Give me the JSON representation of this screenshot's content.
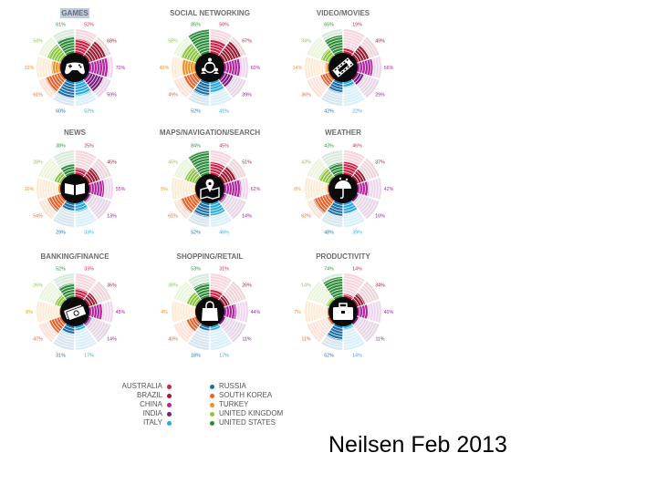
{
  "countries": [
    {
      "name": "AUSTRALIA",
      "color": "#d21f43"
    },
    {
      "name": "BRAZIL",
      "color": "#9c1a32"
    },
    {
      "name": "CHINA",
      "color": "#b3239d"
    },
    {
      "name": "INDIA",
      "color": "#7a1c7c"
    },
    {
      "name": "ITALY",
      "color": "#2aa9e0"
    },
    {
      "name": "RUSSIA",
      "color": "#1e6fa6"
    },
    {
      "name": "SOUTH KOREA",
      "color": "#e8642c"
    },
    {
      "name": "TURKEY",
      "color": "#f2901e"
    },
    {
      "name": "UNITED KINGDOM",
      "color": "#8cc63f"
    },
    {
      "name": "UNITED STATES",
      "color": "#2e8b3a"
    }
  ],
  "chart_data": [
    {
      "type": "radial-bar",
      "title": "GAMES",
      "icon": "gamepad-icon",
      "highlighted": true,
      "categories": [
        "AUSTRALIA",
        "BRAZIL",
        "CHINA",
        "INDIA",
        "ITALY",
        "RUSSIA",
        "SOUTH KOREA",
        "TURKEY",
        "UNITED KINGDOM",
        "UNITED STATES"
      ],
      "values": [
        52,
        68,
        70,
        59,
        52,
        60,
        61,
        33,
        54,
        61
      ],
      "labels": [
        "52%",
        "68%",
        "70%",
        "59%",
        "52%",
        "60%",
        "61%",
        "33%",
        "54%",
        "61%"
      ]
    },
    {
      "type": "radial-bar",
      "title": "SOCIAL NETWORKING",
      "icon": "people-network-icon",
      "categories": [
        "AUSTRALIA",
        "BRAZIL",
        "CHINA",
        "INDIA",
        "ITALY",
        "RUSSIA",
        "SOUTH KOREA",
        "TURKEY",
        "UNITED KINGDOM",
        "UNITED STATES"
      ],
      "values": [
        50,
        67,
        60,
        39,
        41,
        52,
        49,
        49,
        58,
        85
      ],
      "labels": [
        "50%",
        "67%",
        "60%",
        "39%",
        "41%",
        "52%",
        "49%",
        "49%",
        "58%",
        "85%"
      ]
    },
    {
      "type": "radial-bar",
      "title": "VIDEO/MOVIES",
      "icon": "film-reel-icon",
      "categories": [
        "AUSTRALIA",
        "BRAZIL",
        "CHINA",
        "INDIA",
        "ITALY",
        "RUSSIA",
        "SOUTH KOREA",
        "TURKEY",
        "UNITED KINGDOM",
        "UNITED STATES"
      ],
      "values": [
        19,
        49,
        56,
        29,
        22,
        42,
        36,
        14,
        34,
        65
      ],
      "labels": [
        "19%",
        "49%",
        "56%",
        "29%",
        "22%",
        "42%",
        "36%",
        "14%",
        "34%",
        "65%"
      ]
    },
    {
      "type": "radial-bar",
      "title": "NEWS",
      "icon": "open-book-icon",
      "categories": [
        "AUSTRALIA",
        "BRAZIL",
        "CHINA",
        "INDIA",
        "ITALY",
        "RUSSIA",
        "SOUTH KOREA",
        "TURKEY",
        "UNITED KINGDOM",
        "UNITED STATES"
      ],
      "values": [
        25,
        45,
        55,
        13,
        33,
        29,
        54,
        10,
        28,
        38
      ],
      "labels": [
        "25%",
        "45%",
        "55%",
        "13%",
        "33%",
        "29%",
        "54%",
        "10%",
        "28%",
        "38%"
      ]
    },
    {
      "type": "radial-bar",
      "title": "MAPS/NAVIGATION/SEARCH",
      "icon": "map-pin-icon",
      "categories": [
        "AUSTRALIA",
        "BRAZIL",
        "CHINA",
        "INDIA",
        "ITALY",
        "RUSSIA",
        "SOUTH KOREA",
        "TURKEY",
        "UNITED KINGDOM",
        "UNITED STATES"
      ],
      "values": [
        45,
        51,
        62,
        14,
        46,
        52,
        61,
        5,
        45,
        84
      ],
      "labels": [
        "45%",
        "51%",
        "62%",
        "14%",
        "46%",
        "52%",
        "61%",
        "5%",
        "45%",
        "84%"
      ]
    },
    {
      "type": "radial-bar",
      "title": "WEATHER",
      "icon": "weather-umbrella-icon",
      "categories": [
        "AUSTRALIA",
        "BRAZIL",
        "CHINA",
        "INDIA",
        "ITALY",
        "RUSSIA",
        "SOUTH KOREA",
        "TURKEY",
        "UNITED KINGDOM",
        "UNITED STATES"
      ],
      "values": [
        46,
        37,
        42,
        10,
        39,
        48,
        62,
        8,
        43,
        43
      ],
      "labels": [
        "46%",
        "37%",
        "42%",
        "10%",
        "39%",
        "48%",
        "62%",
        "8%",
        "43%",
        "43%"
      ]
    },
    {
      "type": "radial-bar",
      "title": "BANKING/FINANCE",
      "icon": "money-icon",
      "categories": [
        "AUSTRALIA",
        "BRAZIL",
        "CHINA",
        "INDIA",
        "ITALY",
        "RUSSIA",
        "SOUTH KOREA",
        "TURKEY",
        "UNITED KINGDOM",
        "UNITED STATES"
      ],
      "values": [
        33,
        36,
        48,
        14,
        17,
        31,
        47,
        6,
        26,
        52
      ],
      "labels": [
        "33%",
        "36%",
        "48%",
        "14%",
        "17%",
        "31%",
        "47%",
        "6%",
        "26%",
        "52%"
      ]
    },
    {
      "type": "radial-bar",
      "title": "SHOPPING/RETAIL",
      "icon": "shopping-bag-icon",
      "categories": [
        "AUSTRALIA",
        "BRAZIL",
        "CHINA",
        "INDIA",
        "ITALY",
        "RUSSIA",
        "SOUTH KOREA",
        "TURKEY",
        "UNITED KINGDOM",
        "UNITED STATES"
      ],
      "values": [
        31,
        26,
        44,
        11,
        17,
        18,
        40,
        4,
        38,
        53
      ],
      "labels": [
        "31%",
        "26%",
        "44%",
        "11%",
        "17%",
        "18%",
        "40%",
        "4%",
        "38%",
        "53%"
      ]
    },
    {
      "type": "radial-bar",
      "title": "PRODUCTIVITY",
      "icon": "briefcase-icon",
      "categories": [
        "AUSTRALIA",
        "BRAZIL",
        "CHINA",
        "INDIA",
        "ITALY",
        "RUSSIA",
        "SOUTH KOREA",
        "TURKEY",
        "UNITED KINGDOM",
        "UNITED STATES"
      ],
      "values": [
        14,
        34,
        40,
        11,
        14,
        52,
        11,
        7,
        14,
        74
      ],
      "labels": [
        "14%",
        "34%",
        "40%",
        "11%",
        "14%",
        "52%",
        "11%",
        "7%",
        "14%",
        "74%"
      ]
    }
  ],
  "legend": {
    "left": [
      "AUSTRALIA",
      "BRAZIL",
      "CHINA",
      "INDIA",
      "ITALY"
    ],
    "right": [
      "RUSSIA",
      "SOUTH KOREA",
      "TURKEY",
      "UNITED KINGDOM",
      "UNITED STATES"
    ]
  },
  "footer": {
    "text": "Neilsen Feb 2013"
  }
}
